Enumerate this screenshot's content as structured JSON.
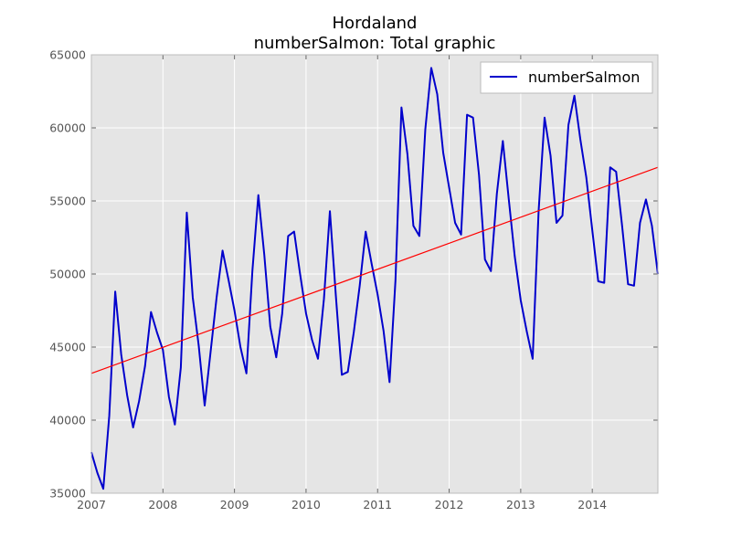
{
  "chart_data": {
    "type": "line",
    "title": "Hordaland",
    "subtitle": "numberSalmon: Total graphic",
    "xlabel": "",
    "ylabel": "",
    "xlim": [
      2007.0,
      2014.917
    ],
    "ylim": [
      35000,
      65000
    ],
    "x_ticks": [
      "2007",
      "2008",
      "2009",
      "2010",
      "2011",
      "2012",
      "2013",
      "2014"
    ],
    "y_ticks": [
      "35000",
      "40000",
      "45000",
      "50000",
      "55000",
      "60000",
      "65000"
    ],
    "grid": true,
    "legend_position": "top-right",
    "series": [
      {
        "name": "numberSalmon",
        "color": "#0000cc",
        "start": "2007-01",
        "frequency": "monthly",
        "values": [
          37800,
          36400,
          35300,
          40300,
          48800,
          44500,
          41700,
          39500,
          41300,
          43700,
          47400,
          46000,
          44800,
          41600,
          39700,
          43600,
          54200,
          48400,
          45100,
          41000,
          44700,
          48400,
          51600,
          49600,
          47500,
          45000,
          43200,
          50200,
          55400,
          51300,
          46400,
          44300,
          47300,
          52600,
          52900,
          50000,
          47300,
          45500,
          44200,
          48300,
          54300,
          48500,
          43100,
          43300,
          46000,
          49200,
          52900,
          50700,
          48600,
          46100,
          42600,
          49600,
          61400,
          58200,
          53300,
          52600,
          59900,
          64100,
          62300,
          58300,
          55900,
          53500,
          52700,
          60900,
          60700,
          56800,
          51000,
          50200,
          55500,
          59100,
          55100,
          51200,
          48200,
          46100,
          44200,
          54300,
          60700,
          58100,
          53500,
          54000,
          60200,
          62200,
          59200,
          56600,
          53000,
          49500,
          49400,
          57300,
          57000,
          53300,
          49300,
          49200,
          53500,
          55100,
          53300,
          50000
        ]
      },
      {
        "name": "",
        "color": "#ff0000",
        "kind": "trend",
        "x": [
          2007.0,
          2014.917
        ],
        "values": [
          43200,
          57300
        ]
      }
    ]
  }
}
